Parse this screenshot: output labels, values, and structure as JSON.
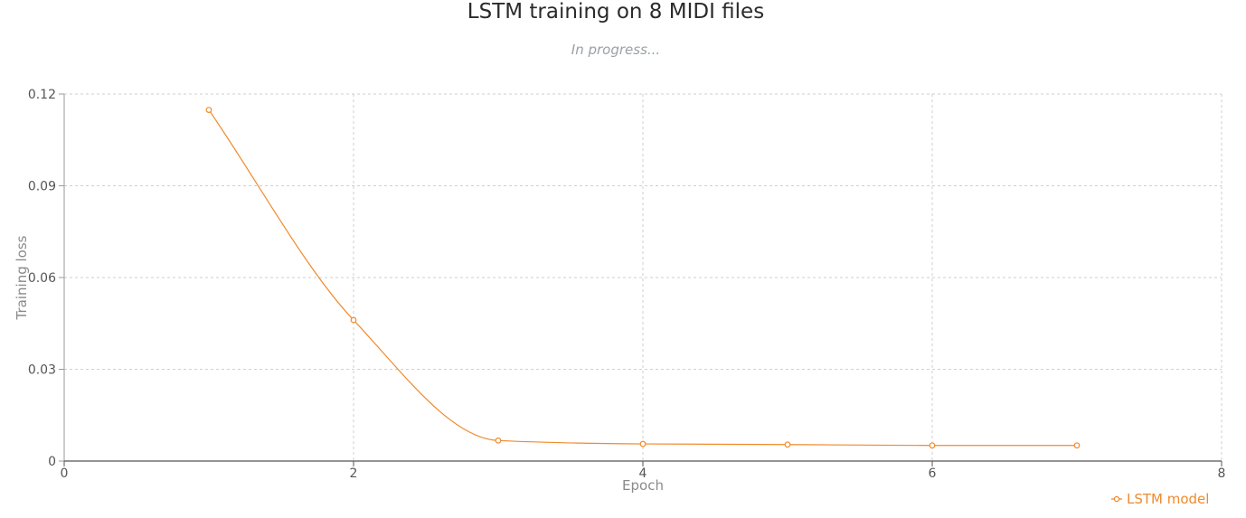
{
  "chart_data": {
    "type": "line",
    "title": "LSTM training on 8 MIDI files",
    "subtitle": "In progress...",
    "xlabel": "Epoch",
    "ylabel": "Training loss",
    "xlim": [
      0,
      8
    ],
    "ylim": [
      0,
      0.12
    ],
    "xticks": [
      0,
      2,
      4,
      6,
      8
    ],
    "yticks": [
      0,
      0.03,
      0.06,
      0.09,
      0.12
    ],
    "xtick_labels": [
      "0",
      "2",
      "4",
      "6",
      "8"
    ],
    "ytick_labels": [
      "0",
      "0.03",
      "0.06",
      "0.09",
      "0.12"
    ],
    "grid": true,
    "legend_position": "bottom-right",
    "series": [
      {
        "name": "LSTM model",
        "color": "#f08a2c",
        "x": [
          1,
          2,
          3,
          4,
          5,
          6,
          7
        ],
        "y": [
          0.1148,
          0.0461,
          0.0067,
          0.0056,
          0.0054,
          0.0051,
          0.0051
        ]
      }
    ]
  }
}
